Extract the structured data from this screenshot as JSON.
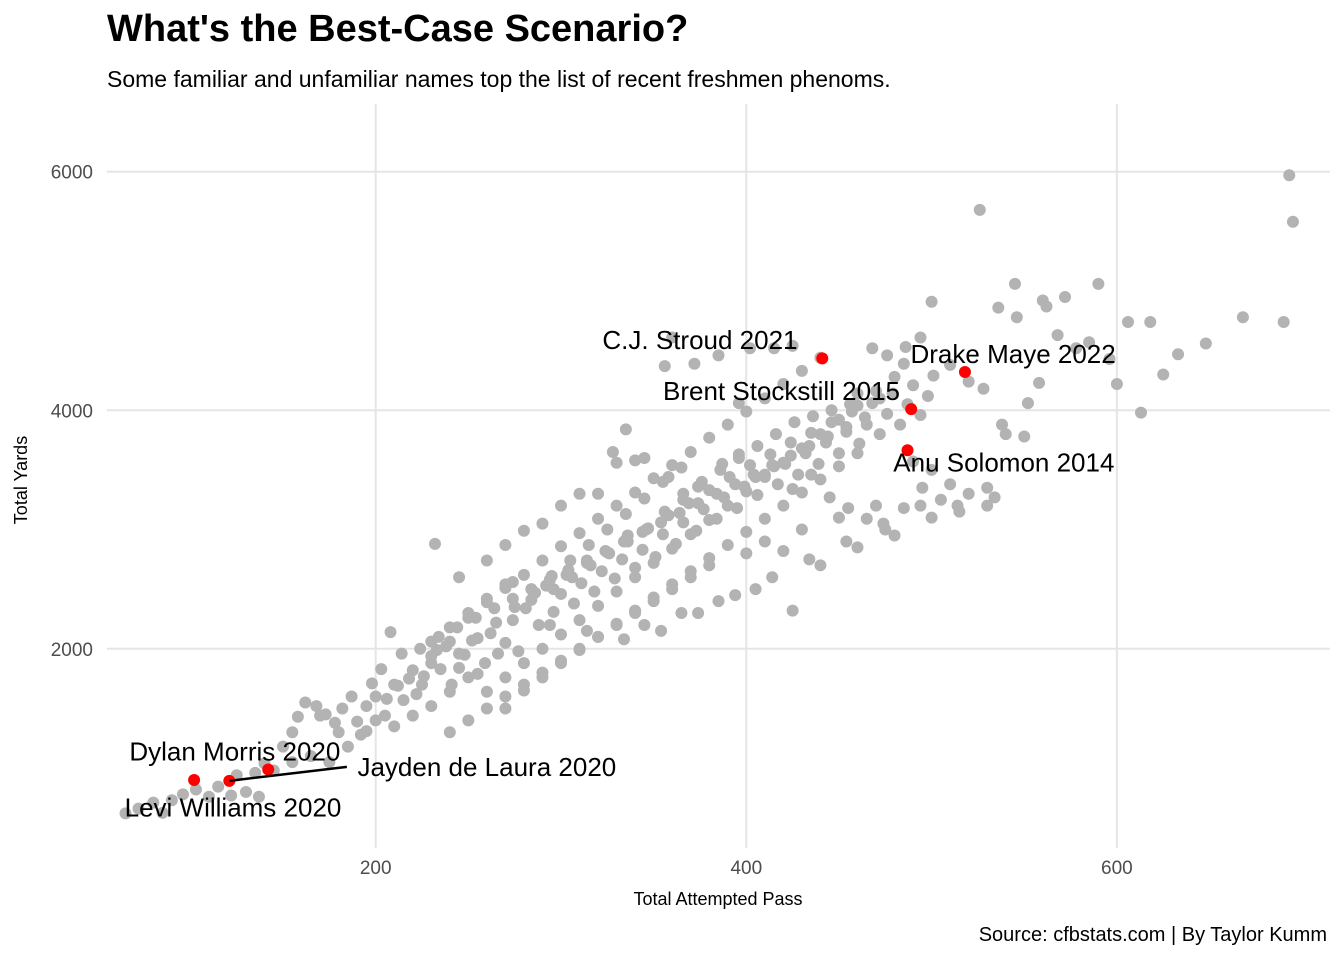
{
  "chart_data": {
    "type": "scatter",
    "title": "What's the Best-Case Scenario?",
    "subtitle": "Some familiar and unfamiliar names top the list of recent freshmen phenoms.",
    "xlabel": "Total Attempted Pass",
    "ylabel": "Total Yards",
    "caption": "Source: cfbstats.com | By Taylor Kumm",
    "xlim": [
      55,
      715
    ],
    "ylim": [
      330,
      6400
    ],
    "x_ticks": [
      200,
      400,
      600
    ],
    "y_ticks": [
      2000,
      4000,
      6000
    ],
    "colors": {
      "background_points": "#b3b3b3",
      "highlight_points": "#ff0000",
      "grid": "#e5e5e5"
    },
    "highlighted": [
      {
        "name": "C.J. Stroud 2021",
        "x": 441,
        "y": 4435
      },
      {
        "name": "Drake Maye 2022",
        "x": 518,
        "y": 4321
      },
      {
        "name": "Brent Stockstill 2015",
        "x": 489,
        "y": 4009
      },
      {
        "name": "Anu Solomon 2014",
        "x": 487,
        "y": 3665
      },
      {
        "name": "Dylan Morris 2020",
        "x": 142,
        "y": 988
      },
      {
        "name": "Jayden de Laura 2020",
        "x": 121,
        "y": 893
      },
      {
        "name": "Levi Williams 2020",
        "x": 102,
        "y": 900
      }
    ],
    "labels": [
      {
        "text": "C.J. Stroud 2021",
        "x": 375,
        "y": 4590
      },
      {
        "text": "Drake Maye 2022",
        "x": 544,
        "y": 4470
      },
      {
        "text": "Brent Stockstill 2015",
        "x": 419,
        "y": 4160
      },
      {
        "text": "Anu Solomon 2014",
        "x": 539,
        "y": 3560
      },
      {
        "text": "Dylan Morris 2020",
        "x": 124,
        "y": 1140
      },
      {
        "text": "Jayden de Laura 2020",
        "x": 260,
        "y": 1010
      },
      {
        "text": "Levi Williams 2020",
        "x": 123,
        "y": 670
      }
    ],
    "gray_points": [
      [
        65,
        620
      ],
      [
        72,
        660
      ],
      [
        80,
        710
      ],
      [
        85,
        625
      ],
      [
        90,
        730
      ],
      [
        96,
        780
      ],
      [
        103,
        820
      ],
      [
        110,
        760
      ],
      [
        115,
        845
      ],
      [
        122,
        770
      ],
      [
        130,
        800
      ],
      [
        137,
        760
      ],
      [
        140,
        1040
      ],
      [
        150,
        1180
      ],
      [
        155,
        1300
      ],
      [
        158,
        1430
      ],
      [
        162,
        1550
      ],
      [
        168,
        1520
      ],
      [
        173,
        1450
      ],
      [
        178,
        1380
      ],
      [
        182,
        1500
      ],
      [
        187,
        1600
      ],
      [
        190,
        1390
      ],
      [
        195,
        1520
      ],
      [
        198,
        1710
      ],
      [
        203,
        1830
      ],
      [
        206,
        1580
      ],
      [
        212,
        1690
      ],
      [
        218,
        1750
      ],
      [
        222,
        1620
      ],
      [
        226,
        1770
      ],
      [
        230,
        1880
      ],
      [
        233,
        1990
      ],
      [
        238,
        2020
      ],
      [
        241,
        1700
      ],
      [
        245,
        1840
      ],
      [
        248,
        1950
      ],
      [
        252,
        2070
      ],
      [
        255,
        1790
      ],
      [
        259,
        1880
      ],
      [
        262,
        2130
      ],
      [
        266,
        1960
      ],
      [
        270,
        2050
      ],
      [
        274,
        2240
      ],
      [
        277,
        1980
      ],
      [
        281,
        2340
      ],
      [
        284,
        2410
      ],
      [
        288,
        2200
      ],
      [
        292,
        2530
      ],
      [
        296,
        2310
      ],
      [
        300,
        2460
      ],
      [
        303,
        2620
      ],
      [
        307,
        2380
      ],
      [
        311,
        2550
      ],
      [
        314,
        2720
      ],
      [
        318,
        2480
      ],
      [
        322,
        2650
      ],
      [
        325,
        2810
      ],
      [
        329,
        2590
      ],
      [
        333,
        2750
      ],
      [
        336,
        2900
      ],
      [
        340,
        2680
      ],
      [
        344,
        2830
      ],
      [
        347,
        3010
      ],
      [
        351,
        2770
      ],
      [
        355,
        2960
      ],
      [
        358,
        3120
      ],
      [
        362,
        2880
      ],
      [
        366,
        3060
      ],
      [
        369,
        3220
      ],
      [
        373,
        2990
      ],
      [
        377,
        3170
      ],
      [
        380,
        3330
      ],
      [
        384,
        3090
      ],
      [
        388,
        3270
      ],
      [
        391,
        3440
      ],
      [
        395,
        3180
      ],
      [
        399,
        3360
      ],
      [
        402,
        3540
      ],
      [
        406,
        3290
      ],
      [
        410,
        3460
      ],
      [
        413,
        3630
      ],
      [
        417,
        3380
      ],
      [
        421,
        3550
      ],
      [
        424,
        3730
      ],
      [
        428,
        3460
      ],
      [
        432,
        3640
      ],
      [
        435,
        3810
      ],
      [
        439,
        3550
      ],
      [
        443,
        3730
      ],
      [
        446,
        3900
      ],
      [
        450,
        3640
      ],
      [
        454,
        3820
      ],
      [
        457,
        3990
      ],
      [
        461,
        3720
      ],
      [
        465,
        3880
      ],
      [
        468,
        4060
      ],
      [
        472,
        3800
      ],
      [
        476,
        3970
      ],
      [
        479,
        4140
      ],
      [
        483,
        3880
      ],
      [
        487,
        4050
      ],
      [
        490,
        4210
      ],
      [
        494,
        3960
      ],
      [
        498,
        4120
      ],
      [
        501,
        4290
      ],
      [
        270,
        1500
      ],
      [
        280,
        1650
      ],
      [
        290,
        1760
      ],
      [
        300,
        1880
      ],
      [
        310,
        1990
      ],
      [
        320,
        2100
      ],
      [
        330,
        2210
      ],
      [
        340,
        2320
      ],
      [
        350,
        2430
      ],
      [
        360,
        2540
      ],
      [
        370,
        2650
      ],
      [
        380,
        2760
      ],
      [
        390,
        2870
      ],
      [
        400,
        2980
      ],
      [
        410,
        3090
      ],
      [
        420,
        3200
      ],
      [
        430,
        3310
      ],
      [
        440,
        3420
      ],
      [
        450,
        3530
      ],
      [
        460,
        3640
      ],
      [
        250,
        2260
      ],
      [
        260,
        2390
      ],
      [
        270,
        2510
      ],
      [
        280,
        2620
      ],
      [
        290,
        2740
      ],
      [
        300,
        2860
      ],
      [
        310,
        2970
      ],
      [
        320,
        3090
      ],
      [
        330,
        3200
      ],
      [
        340,
        3310
      ],
      [
        350,
        3430
      ],
      [
        360,
        3540
      ],
      [
        370,
        3650
      ],
      [
        380,
        3770
      ],
      [
        390,
        3880
      ],
      [
        400,
        3990
      ],
      [
        410,
        4100
      ],
      [
        420,
        4220
      ],
      [
        430,
        4330
      ],
      [
        440,
        4440
      ],
      [
        230,
        2060
      ],
      [
        240,
        2180
      ],
      [
        250,
        2300
      ],
      [
        260,
        2420
      ],
      [
        270,
        2540
      ],
      [
        200,
        1600
      ],
      [
        210,
        1700
      ],
      [
        220,
        1820
      ],
      [
        230,
        1940
      ],
      [
        240,
        2060
      ],
      [
        330,
        3560
      ],
      [
        335,
        3840
      ],
      [
        345,
        3600
      ],
      [
        358,
        3440
      ],
      [
        366,
        3250
      ],
      [
        374,
        3360
      ],
      [
        387,
        3550
      ],
      [
        396,
        3630
      ],
      [
        405,
        3440
      ],
      [
        415,
        3530
      ],
      [
        425,
        3340
      ],
      [
        435,
        3460
      ],
      [
        445,
        3270
      ],
      [
        455,
        3180
      ],
      [
        465,
        3090
      ],
      [
        475,
        3000
      ],
      [
        485,
        3180
      ],
      [
        495,
        3350
      ],
      [
        505,
        3250
      ],
      [
        515,
        3150
      ],
      [
        530,
        3350
      ],
      [
        540,
        3800
      ],
      [
        550,
        3780
      ],
      [
        552,
        4060
      ],
      [
        558,
        4230
      ],
      [
        562,
        4870
      ],
      [
        568,
        4630
      ],
      [
        572,
        4950
      ],
      [
        578,
        4520
      ],
      [
        585,
        4570
      ],
      [
        590,
        5060
      ],
      [
        596,
        4430
      ],
      [
        600,
        4220
      ],
      [
        606,
        4740
      ],
      [
        613,
        3980
      ],
      [
        618,
        4740
      ],
      [
        625,
        4300
      ],
      [
        633,
        4470
      ],
      [
        648,
        4560
      ],
      [
        668,
        4780
      ],
      [
        690,
        4740
      ],
      [
        693,
        5970
      ],
      [
        695,
        5580
      ],
      [
        526,
        5680
      ],
      [
        536,
        4860
      ],
      [
        545,
        5060
      ],
      [
        560,
        4920
      ],
      [
        546,
        4780
      ],
      [
        500,
        4910
      ],
      [
        486,
        4530
      ],
      [
        510,
        4380
      ],
      [
        520,
        4240
      ],
      [
        528,
        4180
      ],
      [
        538,
        3880
      ],
      [
        468,
        4520
      ],
      [
        476,
        4460
      ],
      [
        485,
        4390
      ],
      [
        494,
        4610
      ],
      [
        356,
        4370
      ],
      [
        372,
        4390
      ],
      [
        402,
        4520
      ],
      [
        415,
        4520
      ],
      [
        425,
        4540
      ],
      [
        360,
        4610
      ],
      [
        385,
        4460
      ],
      [
        396,
        4060
      ],
      [
        460,
        4140
      ],
      [
        472,
        4100
      ],
      [
        490,
        3570
      ],
      [
        500,
        3500
      ],
      [
        510,
        3380
      ],
      [
        520,
        3300
      ],
      [
        530,
        3200
      ],
      [
        320,
        3300
      ],
      [
        328,
        3650
      ],
      [
        340,
        3580
      ],
      [
        310,
        3300
      ],
      [
        300,
        3200
      ],
      [
        290,
        3050
      ],
      [
        280,
        2990
      ],
      [
        270,
        2870
      ],
      [
        260,
        2740
      ],
      [
        245,
        2600
      ],
      [
        232,
        2880
      ],
      [
        286,
        2470
      ],
      [
        296,
        2500
      ],
      [
        306,
        2600
      ],
      [
        316,
        2700
      ],
      [
        326,
        2800
      ],
      [
        336,
        2950
      ],
      [
        346,
        3000
      ],
      [
        356,
        3150
      ],
      [
        366,
        3300
      ],
      [
        376,
        3400
      ],
      [
        386,
        3500
      ],
      [
        396,
        3600
      ],
      [
        406,
        3700
      ],
      [
        416,
        3800
      ],
      [
        426,
        3900
      ],
      [
        436,
        3950
      ],
      [
        446,
        4000
      ],
      [
        456,
        4050
      ],
      [
        208,
        2140
      ],
      [
        214,
        1960
      ],
      [
        224,
        2000
      ],
      [
        234,
        2100
      ],
      [
        244,
        2180
      ],
      [
        254,
        2260
      ],
      [
        264,
        2340
      ],
      [
        274,
        2420
      ],
      [
        284,
        2500
      ],
      [
        294,
        2580
      ],
      [
        304,
        2660
      ],
      [
        314,
        2740
      ],
      [
        324,
        2820
      ],
      [
        334,
        2900
      ],
      [
        344,
        2980
      ],
      [
        354,
        3060
      ],
      [
        364,
        3140
      ],
      [
        374,
        3220
      ],
      [
        384,
        3300
      ],
      [
        394,
        3380
      ],
      [
        404,
        3460
      ],
      [
        414,
        3540
      ],
      [
        424,
        3620
      ],
      [
        434,
        3700
      ],
      [
        444,
        3780
      ],
      [
        454,
        3860
      ],
      [
        464,
        3940
      ],
      [
        274,
        2560
      ],
      [
        294,
        2200
      ],
      [
        314,
        2150
      ],
      [
        334,
        2080
      ],
      [
        354,
        2150
      ],
      [
        374,
        2300
      ],
      [
        394,
        2450
      ],
      [
        414,
        2600
      ],
      [
        434,
        2750
      ],
      [
        454,
        2900
      ],
      [
        474,
        3050
      ],
      [
        494,
        3200
      ],
      [
        514,
        3200
      ],
      [
        534,
        3270
      ],
      [
        170,
        1440
      ],
      [
        180,
        1300
      ],
      [
        192,
        1280
      ],
      [
        200,
        1400
      ],
      [
        210,
        1350
      ],
      [
        220,
        1440
      ],
      [
        230,
        1520
      ],
      [
        240,
        1640
      ],
      [
        250,
        1760
      ],
      [
        260,
        1640
      ],
      [
        270,
        1760
      ],
      [
        280,
        1880
      ],
      [
        290,
        2000
      ],
      [
        300,
        2120
      ],
      [
        310,
        2240
      ],
      [
        320,
        2360
      ],
      [
        330,
        2480
      ],
      [
        340,
        2600
      ],
      [
        350,
        2720
      ],
      [
        360,
        2840
      ],
      [
        370,
        2960
      ],
      [
        380,
        3080
      ],
      [
        390,
        3200
      ],
      [
        400,
        3320
      ],
      [
        410,
        3440
      ],
      [
        420,
        3560
      ],
      [
        430,
        3680
      ],
      [
        440,
        3800
      ],
      [
        450,
        3920
      ],
      [
        460,
        4040
      ],
      [
        470,
        4160
      ],
      [
        480,
        4280
      ],
      [
        355,
        3400
      ],
      [
        365,
        3520
      ],
      [
        345,
        3260
      ],
      [
        335,
        3130
      ],
      [
        325,
        3000
      ],
      [
        315,
        2870
      ],
      [
        305,
        2740
      ],
      [
        295,
        2610
      ],
      [
        285,
        2480
      ],
      [
        275,
        2350
      ],
      [
        265,
        2220
      ],
      [
        255,
        2090
      ],
      [
        245,
        1960
      ],
      [
        235,
        1830
      ],
      [
        225,
        1700
      ],
      [
        215,
        1570
      ],
      [
        205,
        1440
      ],
      [
        195,
        1310
      ],
      [
        185,
        1180
      ],
      [
        175,
        1050
      ],
      [
        165,
        1100
      ],
      [
        155,
        1050
      ],
      [
        145,
        980
      ],
      [
        135,
        960
      ],
      [
        125,
        940
      ],
      [
        345,
        2200
      ],
      [
        365,
        2300
      ],
      [
        385,
        2400
      ],
      [
        405,
        2500
      ],
      [
        425,
        2320
      ],
      [
        420,
        2820
      ],
      [
        440,
        2700
      ],
      [
        460,
        2850
      ],
      [
        480,
        2950
      ],
      [
        500,
        3100
      ],
      [
        400,
        2800
      ],
      [
        410,
        2900
      ],
      [
        430,
        3000
      ],
      [
        450,
        3100
      ],
      [
        470,
        3200
      ],
      [
        380,
        2700
      ],
      [
        370,
        2600
      ],
      [
        360,
        2500
      ],
      [
        350,
        2400
      ],
      [
        340,
        2300
      ],
      [
        330,
        2200
      ],
      [
        320,
        2100
      ],
      [
        310,
        2000
      ],
      [
        300,
        1900
      ],
      [
        290,
        1800
      ],
      [
        280,
        1700
      ],
      [
        270,
        1600
      ],
      [
        260,
        1500
      ],
      [
        250,
        1400
      ],
      [
        240,
        1300
      ]
    ]
  }
}
